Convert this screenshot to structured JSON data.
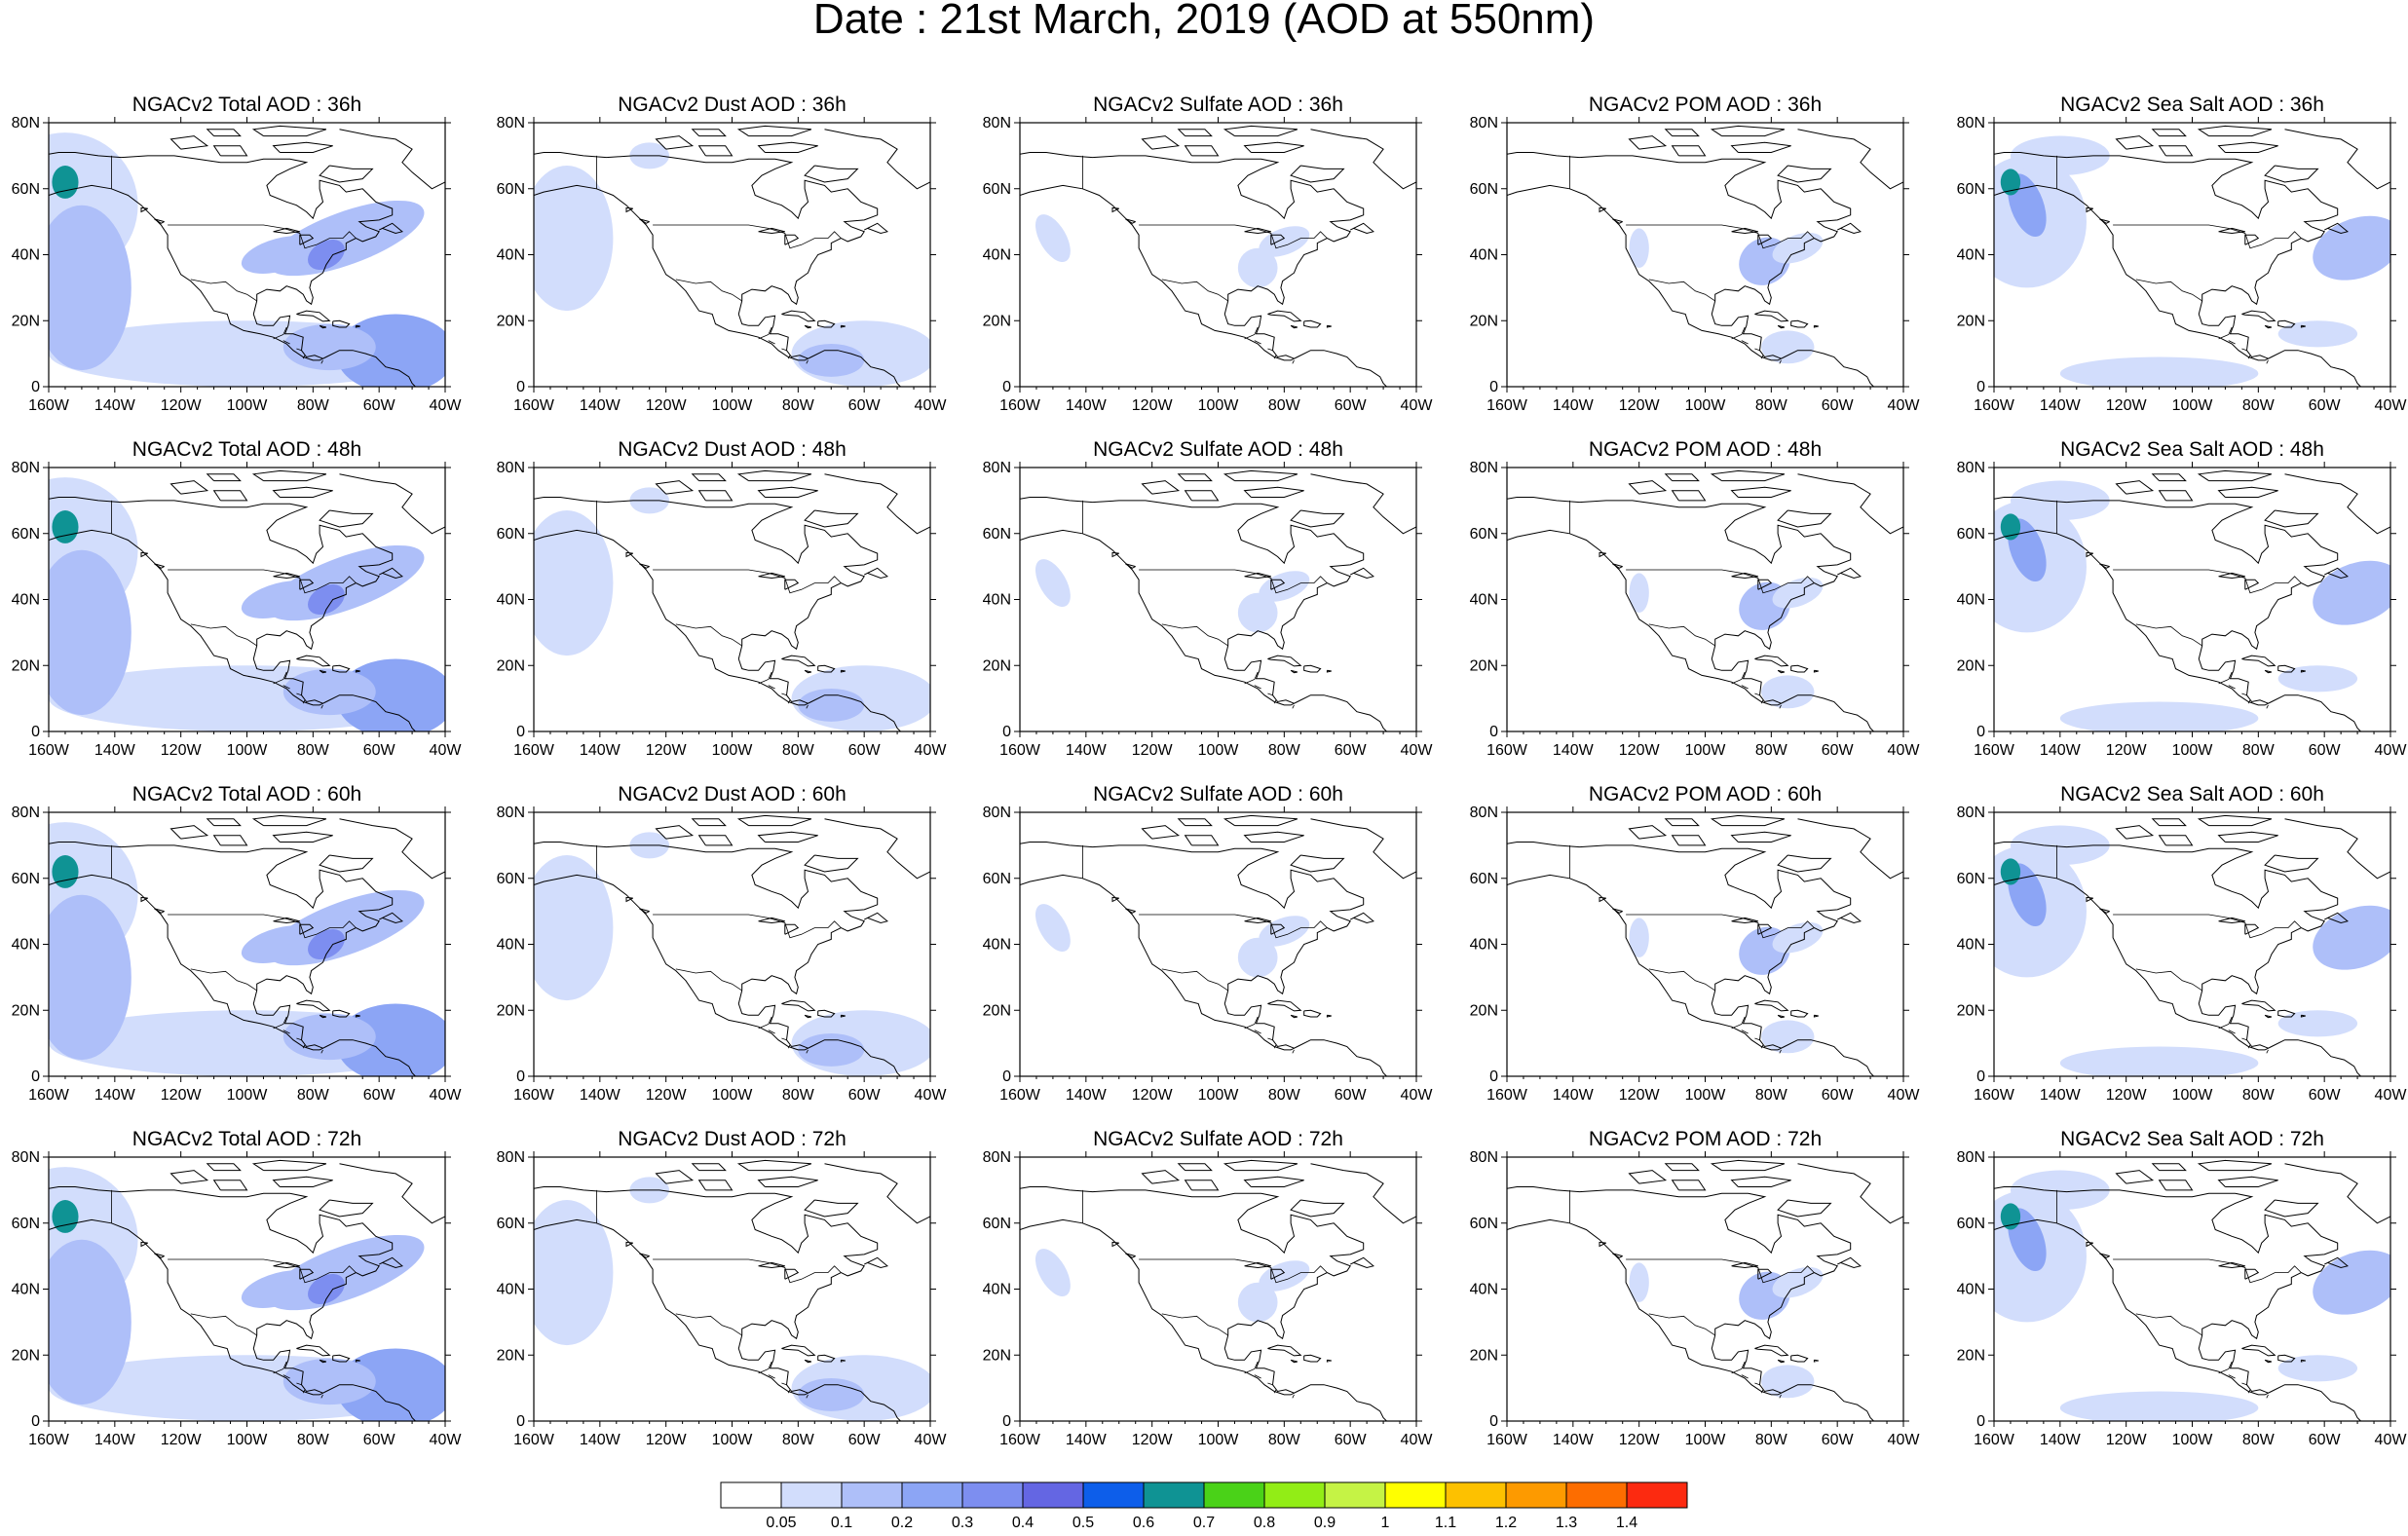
{
  "title": "Date : 21st March, 2019 (AOD at 550nm)",
  "axes": {
    "lon_ticks": [
      "160W",
      "140W",
      "120W",
      "100W",
      "80W",
      "60W",
      "40W"
    ],
    "lat_ticks": [
      "0",
      "20N",
      "40N",
      "60N",
      "80N"
    ],
    "lon_range": [
      -160,
      -40
    ],
    "lat_range": [
      0,
      80
    ]
  },
  "colors": {
    "land_outline": "#000000",
    "levels": [
      "#ffffff",
      "#d2ddfc",
      "#aebff9",
      "#8ca5f5",
      "#7d8ef0",
      "#6466e3",
      "#0d5eea",
      "#0f9394",
      "#4ad218",
      "#92ed16",
      "#c5f345",
      "#ffff00",
      "#fdc100",
      "#fd9a00",
      "#fd6d00",
      "#fc2a10"
    ]
  },
  "colorbar": {
    "labels": [
      "0.05",
      "0.1",
      "0.2",
      "0.3",
      "0.4",
      "0.5",
      "0.6",
      "0.7",
      "0.8",
      "0.9",
      "1",
      "1.1",
      "1.2",
      "1.3",
      "1.4"
    ]
  },
  "panels": [
    {
      "title": "NGACv2 Total AOD : 36h",
      "species": "total"
    },
    {
      "title": "NGACv2 Dust AOD : 36h",
      "species": "dust"
    },
    {
      "title": "NGACv2 Sulfate AOD : 36h",
      "species": "sulfate"
    },
    {
      "title": "NGACv2 POM AOD : 36h",
      "species": "pom"
    },
    {
      "title": "NGACv2 Sea Salt AOD : 36h",
      "species": "seasalt"
    },
    {
      "title": "NGACv2 Total AOD : 48h",
      "species": "total"
    },
    {
      "title": "NGACv2 Dust AOD : 48h",
      "species": "dust"
    },
    {
      "title": "NGACv2 Sulfate AOD : 48h",
      "species": "sulfate"
    },
    {
      "title": "NGACv2 POM AOD : 48h",
      "species": "pom"
    },
    {
      "title": "NGACv2 Sea Salt AOD : 48h",
      "species": "seasalt"
    },
    {
      "title": "NGACv2 Total AOD : 60h",
      "species": "total"
    },
    {
      "title": "NGACv2 Dust AOD : 60h",
      "species": "dust"
    },
    {
      "title": "NGACv2 Sulfate AOD : 60h",
      "species": "sulfate"
    },
    {
      "title": "NGACv2 POM AOD : 60h",
      "species": "pom"
    },
    {
      "title": "NGACv2 Sea Salt AOD : 60h",
      "species": "seasalt"
    },
    {
      "title": "NGACv2 Total AOD : 72h",
      "species": "total"
    },
    {
      "title": "NGACv2 Dust AOD : 72h",
      "species": "dust"
    },
    {
      "title": "NGACv2 Sulfate AOD : 72h",
      "species": "sulfate"
    },
    {
      "title": "NGACv2 POM AOD : 72h",
      "species": "pom"
    },
    {
      "title": "NGACv2 Sea Salt  AOD : 72h",
      "species": "seasalt"
    }
  ]
}
